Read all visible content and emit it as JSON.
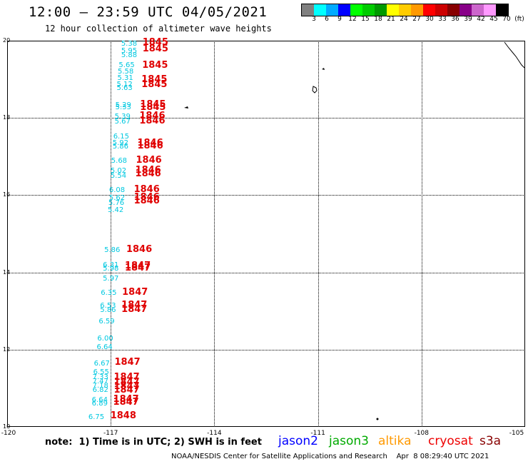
{
  "header": {
    "title": "12:00 – 23:59 UTC 04/05/2021",
    "subtitle": "12 hour collection of altimeter wave heights"
  },
  "legend": {
    "colors": [
      "#808080",
      "#00ffff",
      "#00aaff",
      "#0000ff",
      "#00ff00",
      "#00cc00",
      "#009900",
      "#ffff00",
      "#ffcc00",
      "#ff9900",
      "#ff0000",
      "#cc0000",
      "#880000",
      "#880088",
      "#cc66cc",
      "#ff99ff",
      "#000000"
    ],
    "tick_labels": [
      "3",
      "6",
      "9",
      "12",
      "15",
      "18",
      "21",
      "24",
      "27",
      "30",
      "33",
      "36",
      "39",
      "42",
      "45",
      "70",
      "(ft)"
    ]
  },
  "axes": {
    "lat_labels": [
      "20",
      "18",
      "16",
      "14",
      "12",
      "10"
    ],
    "lon_labels": [
      "-120",
      "-117",
      "-114",
      "-111",
      "-108",
      "-105"
    ],
    "lat_range": [
      10,
      20
    ],
    "lon_range": [
      -120,
      -105
    ]
  },
  "observations": {
    "swh": [
      {
        "v": "5.38",
        "lon": -116.45,
        "lat": 19.9
      },
      {
        "v": "5.95",
        "lon": -116.45,
        "lat": 19.72
      },
      {
        "v": "5.88",
        "lon": -116.45,
        "lat": 19.62
      },
      {
        "v": "5.65",
        "lon": -116.52,
        "lat": 19.35
      },
      {
        "v": "5.58",
        "lon": -116.55,
        "lat": 19.18
      },
      {
        "v": "5.31",
        "lon": -116.56,
        "lat": 19.02
      },
      {
        "v": "5.12",
        "lon": -116.58,
        "lat": 18.86
      },
      {
        "v": "5.63",
        "lon": -116.58,
        "lat": 18.76
      },
      {
        "v": "5.29",
        "lon": -116.62,
        "lat": 18.32
      },
      {
        "v": "5.33",
        "lon": -116.62,
        "lat": 18.26
      },
      {
        "v": "5.39",
        "lon": -116.64,
        "lat": 18.03
      },
      {
        "v": "5.67",
        "lon": -116.64,
        "lat": 17.9
      },
      {
        "v": "6.15",
        "lon": -116.68,
        "lat": 17.5
      },
      {
        "v": "5.92",
        "lon": -116.7,
        "lat": 17.33
      },
      {
        "v": "5.86",
        "lon": -116.7,
        "lat": 17.24
      },
      {
        "v": "5.68",
        "lon": -116.74,
        "lat": 16.87
      },
      {
        "v": "5.02",
        "lon": -116.76,
        "lat": 16.62
      },
      {
        "v": "5.54",
        "lon": -116.76,
        "lat": 16.48
      },
      {
        "v": "6.08",
        "lon": -116.8,
        "lat": 16.12
      },
      {
        "v": "5.62",
        "lon": -116.8,
        "lat": 15.92
      },
      {
        "v": "5.76",
        "lon": -116.82,
        "lat": 15.78
      },
      {
        "v": "5.42",
        "lon": -116.84,
        "lat": 15.6
      },
      {
        "v": "5.86",
        "lon": -116.94,
        "lat": 14.56
      },
      {
        "v": "6.31",
        "lon": -116.98,
        "lat": 14.18
      },
      {
        "v": "5.98",
        "lon": -116.98,
        "lat": 14.08
      },
      {
        "v": "5.97",
        "lon": -116.98,
        "lat": 13.82
      },
      {
        "v": "6.35",
        "lon": -117.04,
        "lat": 13.45
      },
      {
        "v": "6.53",
        "lon": -117.06,
        "lat": 13.12
      },
      {
        "v": "5.86",
        "lon": -117.06,
        "lat": 13.02
      },
      {
        "v": "6.59",
        "lon": -117.1,
        "lat": 12.72
      },
      {
        "v": "6.00",
        "lon": -117.14,
        "lat": 12.28
      },
      {
        "v": "6.64",
        "lon": -117.16,
        "lat": 12.06
      },
      {
        "v": "6.67",
        "lon": -117.24,
        "lat": 11.62
      },
      {
        "v": "6.55",
        "lon": -117.26,
        "lat": 11.4
      },
      {
        "v": "7.33",
        "lon": -117.28,
        "lat": 11.28
      },
      {
        "v": "7.47",
        "lon": -117.28,
        "lat": 11.16
      },
      {
        "v": "7.18",
        "lon": -117.28,
        "lat": 11.06
      },
      {
        "v": "6.82",
        "lon": -117.28,
        "lat": 10.94
      },
      {
        "v": "6.64",
        "lon": -117.3,
        "lat": 10.68
      },
      {
        "v": "6.89",
        "lon": -117.3,
        "lat": 10.6
      },
      {
        "v": "6.75",
        "lon": -117.4,
        "lat": 10.24
      }
    ],
    "times": [
      {
        "v": "1845",
        "lon": -115.75,
        "lat": 19.95
      },
      {
        "v": "1845",
        "lon": -115.75,
        "lat": 19.78
      },
      {
        "v": "1845",
        "lon": -115.76,
        "lat": 19.36
      },
      {
        "v": "1845",
        "lon": -115.78,
        "lat": 18.98
      },
      {
        "v": "1845",
        "lon": -115.78,
        "lat": 18.86
      },
      {
        "v": "1845",
        "lon": -115.82,
        "lat": 18.34
      },
      {
        "v": "1845",
        "lon": -115.82,
        "lat": 18.26
      },
      {
        "v": "1846",
        "lon": -115.84,
        "lat": 18.04
      },
      {
        "v": "1846",
        "lon": -115.84,
        "lat": 17.92
      },
      {
        "v": "1846",
        "lon": -115.9,
        "lat": 17.34
      },
      {
        "v": "1846",
        "lon": -115.9,
        "lat": 17.26
      },
      {
        "v": "1846",
        "lon": -115.94,
        "lat": 16.9
      },
      {
        "v": "1846",
        "lon": -115.96,
        "lat": 16.64
      },
      {
        "v": "1846",
        "lon": -115.96,
        "lat": 16.54
      },
      {
        "v": "1846",
        "lon": -116.0,
        "lat": 16.14
      },
      {
        "v": "1846",
        "lon": -116.0,
        "lat": 15.94
      },
      {
        "v": "1846",
        "lon": -116.0,
        "lat": 15.84
      },
      {
        "v": "1846",
        "lon": -116.22,
        "lat": 14.58
      },
      {
        "v": "1847",
        "lon": -116.26,
        "lat": 14.16
      },
      {
        "v": "1847",
        "lon": -116.26,
        "lat": 14.1
      },
      {
        "v": "1847",
        "lon": -116.34,
        "lat": 13.48
      },
      {
        "v": "1847",
        "lon": -116.36,
        "lat": 13.14
      },
      {
        "v": "1847",
        "lon": -116.36,
        "lat": 13.04
      },
      {
        "v": "1847",
        "lon": -116.56,
        "lat": 11.66
      },
      {
        "v": "1847",
        "lon": -116.58,
        "lat": 11.28
      },
      {
        "v": "1847",
        "lon": -116.58,
        "lat": 11.14
      },
      {
        "v": "1847",
        "lon": -116.58,
        "lat": 11.04
      },
      {
        "v": "1847",
        "lon": -116.58,
        "lat": 10.94
      },
      {
        "v": "1847",
        "lon": -116.6,
        "lat": 10.7
      },
      {
        "v": "1847",
        "lon": -116.6,
        "lat": 10.62
      },
      {
        "v": "1848",
        "lon": -116.68,
        "lat": 10.27
      }
    ]
  },
  "note": "note:  1) Time is in UTC; 2) SWH is in feet",
  "satellites": [
    {
      "name": "jason2",
      "color": "#0000ff"
    },
    {
      "name": "jason3",
      "color": "#00aa00"
    },
    {
      "name": "altika",
      "color": "#ff9900"
    },
    {
      "name": "cryosat",
      "color": "#ee0000"
    },
    {
      "name": "s3a",
      "color": "#880000"
    }
  ],
  "footer": "NOAA/NESDIS Center for Satellite Applications and Research    Apr  8 08:29:40 UTC 2021"
}
